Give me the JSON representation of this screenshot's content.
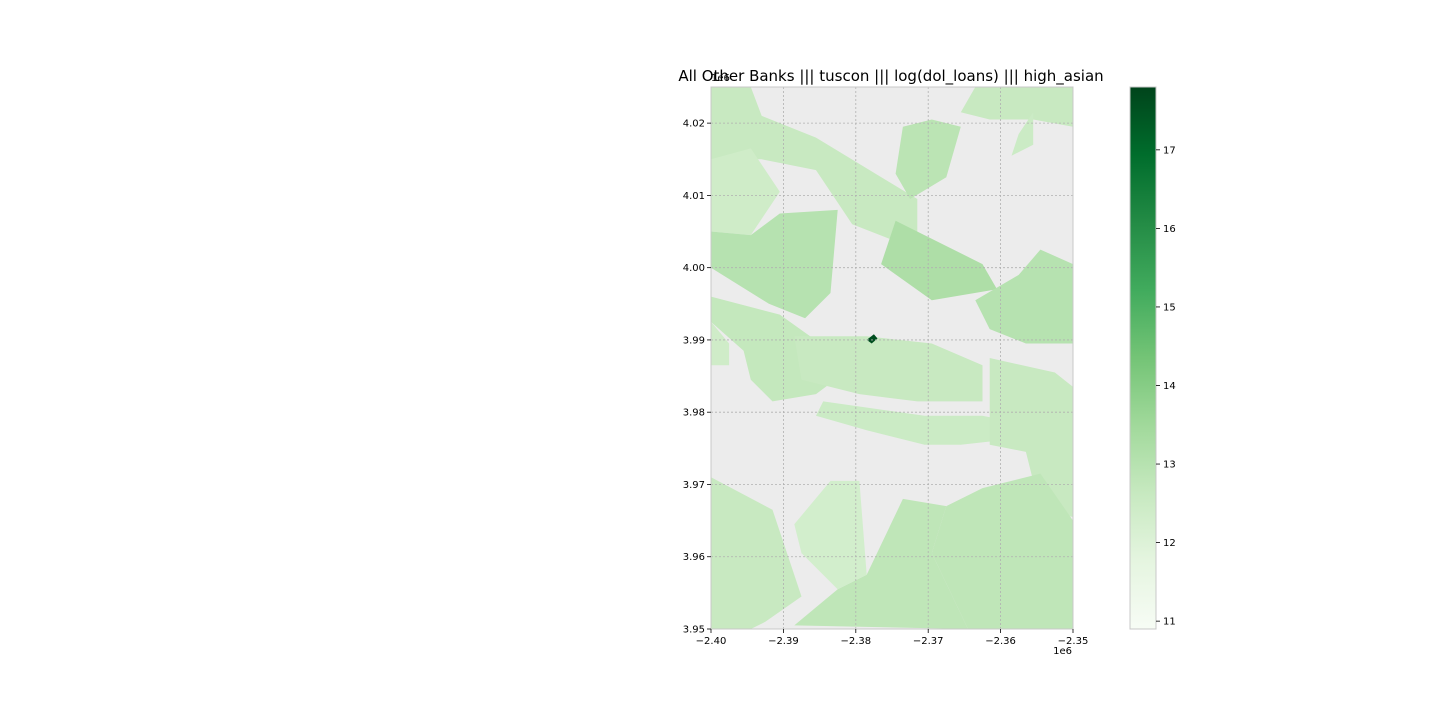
{
  "figure": {
    "title": "All Other Banks ||| tuscon ||| log(dol_loans) ||| high_asian"
  },
  "map": {
    "background_color": "#ececec",
    "grid": true,
    "x_axis": {
      "range": [
        -2.4,
        -2.35
      ],
      "ticks": [
        -2.4,
        -2.39,
        -2.38,
        -2.37,
        -2.36,
        -2.35
      ],
      "tick_labels": [
        "−2.40",
        "−2.39",
        "−2.38",
        "−2.37",
        "−2.36",
        "−2.35"
      ],
      "offset_label": "1e6"
    },
    "y_axis": {
      "range": [
        3.95,
        4.025
      ],
      "ticks": [
        3.95,
        3.96,
        3.97,
        3.98,
        3.99,
        4.0,
        4.01,
        4.02
      ],
      "tick_labels": [
        "3.95",
        "3.96",
        "3.97",
        "3.98",
        "3.99",
        "4.00",
        "4.01",
        "4.02"
      ],
      "offset_label": "1e6"
    }
  },
  "colorbar": {
    "colormap": "Greens",
    "range": [
      10.9,
      17.8
    ],
    "ticks": [
      11,
      12,
      13,
      14,
      15,
      16,
      17
    ],
    "tick_labels": [
      "11",
      "12",
      "13",
      "14",
      "15",
      "16",
      "17"
    ],
    "stops": [
      "#f7fcf5",
      "#e5f5e0",
      "#c7e9c0",
      "#a1d99b",
      "#74c476",
      "#41ab5d",
      "#238b45",
      "#006d2c",
      "#00441b"
    ]
  },
  "chart_data": {
    "type": "choropleth",
    "title": "All Other Banks ||| tuscon ||| log(dol_loans) ||| high_asian",
    "xlim": [
      -2.4,
      -2.35
    ],
    "ylim": [
      3.95,
      4.025
    ],
    "units_scale": "1e6",
    "color_variable": "log(dol_loans)",
    "color_range": [
      10.9,
      17.8
    ],
    "regions": [
      {
        "value": 12.6,
        "polygon": [
          [
            -2.4,
            4.025
          ],
          [
            -2.3945,
            4.025
          ],
          [
            -2.393,
            4.021
          ],
          [
            -2.3855,
            4.018
          ],
          [
            -2.3855,
            4.0135
          ],
          [
            -2.393,
            4.015
          ],
          [
            -2.4,
            4.015
          ]
        ]
      },
      {
        "value": 12.4,
        "polygon": [
          [
            -2.4,
            4.015
          ],
          [
            -2.3945,
            4.0165
          ],
          [
            -2.3905,
            4.0105
          ],
          [
            -2.3945,
            4.0045
          ],
          [
            -2.4,
            4.005
          ]
        ]
      },
      {
        "value": 13.0,
        "polygon": [
          [
            -2.4,
            4.005
          ],
          [
            -2.3945,
            4.0045
          ],
          [
            -2.3905,
            4.0075
          ],
          [
            -2.3825,
            4.008
          ],
          [
            -2.3835,
            3.9965
          ],
          [
            -2.387,
            3.993
          ],
          [
            -2.392,
            3.995
          ],
          [
            -2.4,
            4.0
          ]
        ]
      },
      {
        "value": 12.6,
        "polygon": [
          [
            -2.3855,
            4.018
          ],
          [
            -2.3715,
            4.0095
          ],
          [
            -2.3715,
            4.0025
          ],
          [
            -2.3805,
            4.006
          ],
          [
            -2.3855,
            4.0135
          ]
        ]
      },
      {
        "value": 12.9,
        "polygon": [
          [
            -2.3735,
            4.0195
          ],
          [
            -2.3695,
            4.0205
          ],
          [
            -2.3655,
            4.0195
          ],
          [
            -2.3675,
            4.0125
          ],
          [
            -2.3725,
            4.0095
          ],
          [
            -2.3745,
            4.013
          ]
        ]
      },
      {
        "value": 12.6,
        "polygon": [
          [
            -2.3635,
            4.025
          ],
          [
            -2.35,
            4.025
          ],
          [
            -2.35,
            4.0195
          ],
          [
            -2.3555,
            4.0205
          ],
          [
            -2.3615,
            4.0205
          ],
          [
            -2.3655,
            4.0215
          ]
        ]
      },
      {
        "value": 12.5,
        "polygon": [
          [
            -2.3575,
            4.0185
          ],
          [
            -2.3555,
            4.0215
          ],
          [
            -2.3555,
            4.017
          ],
          [
            -2.3585,
            4.0155
          ]
        ]
      },
      {
        "value": 13.2,
        "polygon": [
          [
            -2.3745,
            4.0065
          ],
          [
            -2.3625,
            4.0005
          ],
          [
            -2.3605,
            3.997
          ],
          [
            -2.3695,
            3.9955
          ],
          [
            -2.3765,
            4.0005
          ]
        ]
      },
      {
        "value": 13.0,
        "polygon": [
          [
            -2.35,
            4.0005
          ],
          [
            -2.3545,
            4.0025
          ],
          [
            -2.3575,
            3.999
          ],
          [
            -2.3635,
            3.9955
          ],
          [
            -2.3615,
            3.9915
          ],
          [
            -2.3565,
            3.9895
          ],
          [
            -2.35,
            3.9895
          ]
        ]
      },
      {
        "value": 12.7,
        "polygon": [
          [
            -2.4,
            3.996
          ],
          [
            -2.3905,
            3.9935
          ],
          [
            -2.3835,
            3.9885
          ],
          [
            -2.3815,
            3.9855
          ],
          [
            -2.3855,
            3.9825
          ],
          [
            -2.3915,
            3.9815
          ],
          [
            -2.3945,
            3.9845
          ],
          [
            -2.3955,
            3.9885
          ],
          [
            -2.4,
            3.9925
          ]
        ]
      },
      {
        "value": 12.4,
        "polygon": [
          [
            -2.4,
            3.9925
          ],
          [
            -2.3975,
            3.9895
          ],
          [
            -2.3975,
            3.9865
          ],
          [
            -2.4,
            3.9865
          ]
        ]
      },
      {
        "value": 12.6,
        "polygon": [
          [
            -2.3885,
            3.9905
          ],
          [
            -2.3785,
            3.9905
          ],
          [
            -2.3695,
            3.9895
          ],
          [
            -2.3625,
            3.9865
          ],
          [
            -2.3625,
            3.9815
          ],
          [
            -2.3715,
            3.9815
          ],
          [
            -2.3795,
            3.9825
          ],
          [
            -2.3875,
            3.9845
          ]
        ]
      },
      {
        "value": 12.5,
        "polygon": [
          [
            -2.3845,
            3.9815
          ],
          [
            -2.3705,
            3.9795
          ],
          [
            -2.3625,
            3.9795
          ],
          [
            -2.3575,
            3.9785
          ],
          [
            -2.3565,
            3.9765
          ],
          [
            -2.3655,
            3.9755
          ],
          [
            -2.3705,
            3.9755
          ],
          [
            -2.3785,
            3.9775
          ],
          [
            -2.3855,
            3.9795
          ]
        ]
      },
      {
        "value": 12.6,
        "polygon": [
          [
            -2.3615,
            3.9875
          ],
          [
            -2.3525,
            3.9855
          ],
          [
            -2.35,
            3.9835
          ],
          [
            -2.35,
            3.9655
          ],
          [
            -2.3545,
            3.9665
          ],
          [
            -2.3565,
            3.9745
          ],
          [
            -2.3615,
            3.9755
          ]
        ]
      },
      {
        "value": 12.8,
        "polygon": [
          [
            -2.35,
            3.965
          ],
          [
            -2.35,
            3.95
          ],
          [
            -2.3645,
            3.95
          ],
          [
            -2.3695,
            3.9605
          ],
          [
            -2.3675,
            3.967
          ],
          [
            -2.3625,
            3.9695
          ],
          [
            -2.3545,
            3.9715
          ]
        ]
      },
      {
        "value": 12.8,
        "polygon": [
          [
            -2.3885,
            3.9505
          ],
          [
            -2.3645,
            3.95
          ],
          [
            -2.3695,
            3.9605
          ],
          [
            -2.3675,
            3.967
          ],
          [
            -2.3735,
            3.968
          ],
          [
            -2.3785,
            3.9575
          ],
          [
            -2.3825,
            3.9555
          ]
        ]
      },
      {
        "value": 12.3,
        "polygon": [
          [
            -2.3835,
            3.9705
          ],
          [
            -2.3795,
            3.9705
          ],
          [
            -2.3785,
            3.9575
          ],
          [
            -2.3825,
            3.9555
          ],
          [
            -2.3875,
            3.9605
          ],
          [
            -2.3885,
            3.9645
          ]
        ]
      },
      {
        "value": 12.6,
        "polygon": [
          [
            -2.4,
            3.971
          ],
          [
            -2.3915,
            3.9665
          ],
          [
            -2.3895,
            3.9605
          ],
          [
            -2.3875,
            3.9545
          ],
          [
            -2.3925,
            3.951
          ],
          [
            -2.3945,
            3.95
          ],
          [
            -2.4,
            3.95
          ]
        ]
      },
      {
        "value": 17.6,
        "polygon": [
          [
            -2.3785,
            3.99
          ],
          [
            -2.3775,
            3.9908
          ],
          [
            -2.377,
            3.9902
          ],
          [
            -2.3778,
            3.9895
          ]
        ]
      }
    ]
  }
}
